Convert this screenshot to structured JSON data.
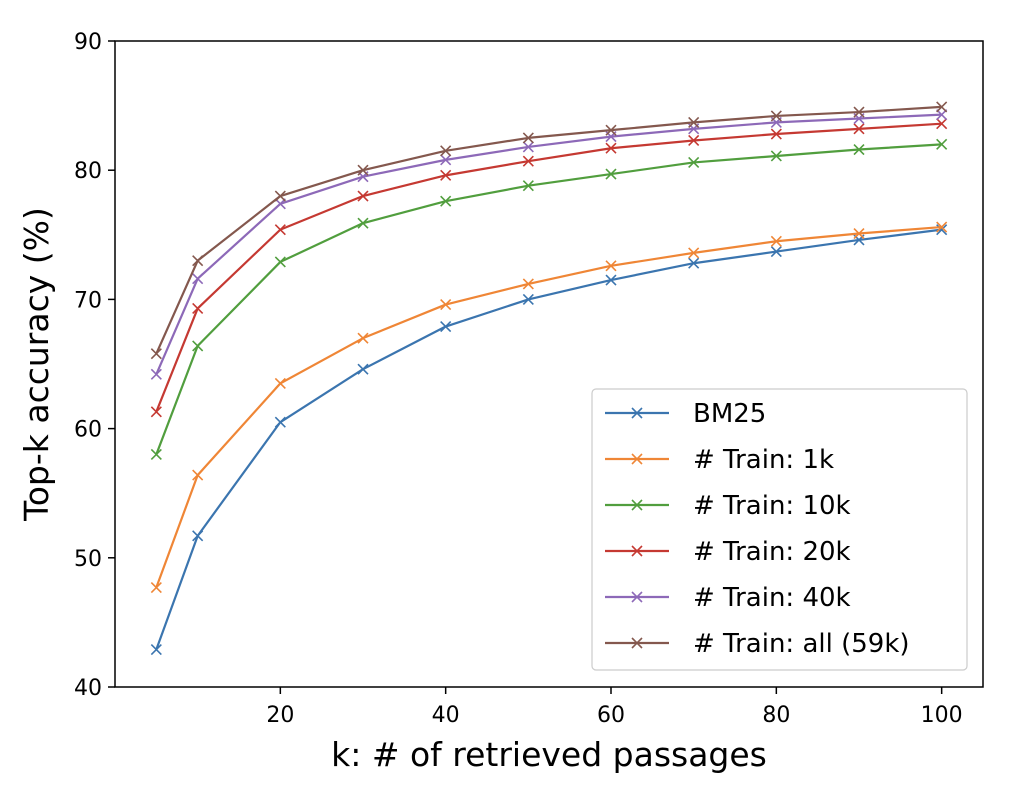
{
  "chart_data": {
    "type": "line",
    "xlabel": "k: # of retrieved passages",
    "ylabel": "Top-k accuracy (%)",
    "xlim": [
      0,
      105
    ],
    "ylim": [
      40,
      90
    ],
    "xticks": [
      20,
      40,
      60,
      80,
      100
    ],
    "yticks": [
      40,
      50,
      60,
      70,
      80,
      90
    ],
    "grid": false,
    "legend_position": "lower-right",
    "x": [
      5,
      10,
      20,
      30,
      40,
      50,
      60,
      70,
      80,
      90,
      100
    ],
    "series": [
      {
        "name": "BM25",
        "color": "#3b75af",
        "marker": "x",
        "values": [
          42.9,
          51.7,
          60.5,
          64.6,
          67.9,
          70.0,
          71.5,
          72.8,
          73.7,
          74.6,
          75.4
        ]
      },
      {
        "name": "# Train: 1k",
        "color": "#ef8636",
        "marker": "x",
        "values": [
          47.7,
          56.4,
          63.5,
          67.0,
          69.6,
          71.2,
          72.6,
          73.6,
          74.5,
          75.1,
          75.6
        ]
      },
      {
        "name": "# Train: 10k",
        "color": "#519e3e",
        "marker": "x",
        "values": [
          58.0,
          66.4,
          72.9,
          75.9,
          77.6,
          78.8,
          79.7,
          80.6,
          81.1,
          81.6,
          82.0
        ]
      },
      {
        "name": "# Train: 20k",
        "color": "#c53932",
        "marker": "x",
        "values": [
          61.3,
          69.3,
          75.4,
          78.0,
          79.6,
          80.7,
          81.7,
          82.3,
          82.8,
          83.2,
          83.6
        ]
      },
      {
        "name": "# Train: 40k",
        "color": "#8d69b8",
        "marker": "x",
        "values": [
          64.2,
          71.6,
          77.4,
          79.5,
          80.8,
          81.8,
          82.6,
          83.2,
          83.7,
          84.0,
          84.3
        ]
      },
      {
        "name": "# Train: all (59k)",
        "color": "#84584e",
        "marker": "x",
        "values": [
          65.8,
          73.0,
          78.0,
          80.0,
          81.5,
          82.5,
          83.1,
          83.7,
          84.2,
          84.5,
          84.9
        ]
      }
    ]
  }
}
